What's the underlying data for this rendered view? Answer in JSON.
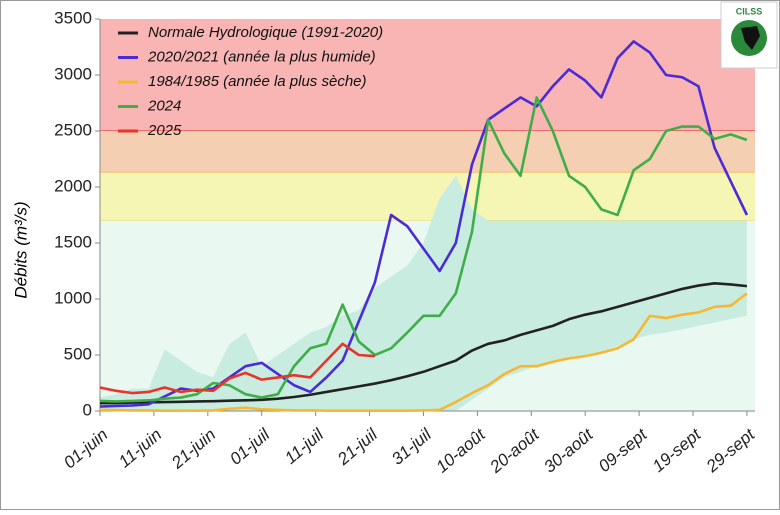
{
  "logo_text": "CILSS",
  "chart_data": {
    "type": "line",
    "y_label": "Débits  (m³/s)",
    "x": [
      0,
      3,
      6,
      9,
      12,
      15,
      18,
      21,
      24,
      27,
      30,
      33,
      36,
      39,
      42,
      45,
      48,
      51,
      54,
      57,
      60,
      63,
      66,
      69,
      72,
      75,
      78,
      81,
      84,
      87,
      90,
      93,
      96,
      99,
      102,
      105,
      108,
      111,
      114,
      117,
      120
    ],
    "xlim": [
      0,
      121.5
    ],
    "xticks": [
      {
        "value": 0,
        "label": "01-juin"
      },
      {
        "value": 10,
        "label": "11-juin"
      },
      {
        "value": 20,
        "label": "21-juin"
      },
      {
        "value": 30,
        "label": "01-juil"
      },
      {
        "value": 40,
        "label": "11-juil"
      },
      {
        "value": 50,
        "label": "21-juil"
      },
      {
        "value": 60,
        "label": "31-juil"
      },
      {
        "value": 70,
        "label": "10-août"
      },
      {
        "value": 80,
        "label": "20-août"
      },
      {
        "value": 90,
        "label": "30-août"
      },
      {
        "value": 100,
        "label": "09-sept"
      },
      {
        "value": 110,
        "label": "19-sept"
      },
      {
        "value": 120,
        "label": "29-sept"
      }
    ],
    "ylim": [
      0,
      3500
    ],
    "yticks": [
      0,
      500,
      1000,
      1500,
      2000,
      2500,
      3000,
      3500
    ],
    "legend": "top-left",
    "zones": [
      {
        "from": 2500,
        "to": 3500,
        "color": "#f9b4b4",
        "edge": "#e8403a"
      },
      {
        "from": 2130,
        "to": 2500,
        "color": "#f4cfb2",
        "edge": "#f0a040"
      },
      {
        "from": 1700,
        "to": 2130,
        "color": "#f6f6b4",
        "edge": "#f0d860"
      },
      {
        "from": 0,
        "to": 1700,
        "color": "#e9f8f1",
        "edge": "#e9f8f1"
      }
    ],
    "band": {
      "color": "#c9ece1",
      "lower": [
        0,
        0,
        0,
        0,
        0,
        0,
        0,
        0,
        0,
        0,
        0,
        0,
        0,
        0,
        0,
        0,
        0,
        0,
        0,
        0,
        0,
        0,
        0,
        100,
        200,
        300,
        350,
        400,
        430,
        460,
        500,
        530,
        580,
        640,
        680,
        700,
        730,
        760,
        790,
        820,
        850
      ],
      "upper": [
        120,
        150,
        200,
        200,
        550,
        450,
        350,
        300,
        600,
        700,
        400,
        500,
        600,
        700,
        750,
        850,
        900,
        1100,
        1200,
        1300,
        1500,
        1900,
        2100,
        1800,
        1700,
        1700,
        1700,
        1700,
        1700,
        1700,
        1700,
        1700,
        1700,
        1700,
        1700,
        1700,
        1700,
        1700,
        1700,
        1700,
        1700
      ]
    },
    "series": [
      {
        "name": "Normale Hydrologique (1991-2020)",
        "color": "#222222",
        "values": [
          70,
          72,
          75,
          78,
          80,
          82,
          85,
          88,
          92,
          95,
          100,
          110,
          125,
          145,
          170,
          195,
          220,
          245,
          275,
          310,
          350,
          400,
          450,
          540,
          600,
          630,
          680,
          720,
          760,
          820,
          860,
          890,
          930,
          970,
          1010,
          1050,
          1090,
          1120,
          1140,
          1130,
          1115
        ]
      },
      {
        "name": "2020/2021 (année la plus humide)",
        "color": "#4a2bd6",
        "values": [
          40,
          45,
          50,
          60,
          130,
          200,
          180,
          200,
          300,
          400,
          430,
          330,
          230,
          170,
          300,
          450,
          800,
          1150,
          1750,
          1650,
          1450,
          1250,
          1500,
          2200,
          2600,
          2700,
          2800,
          2720,
          2900,
          3050,
          2950,
          2800,
          3150,
          3300,
          3200,
          3000,
          2980,
          2900,
          2350,
          2050,
          1750
        ]
      },
      {
        "name": "1984/1985 (année la plus sèche)",
        "color": "#f5b830",
        "values": [
          10,
          8,
          5,
          5,
          3,
          3,
          3,
          5,
          20,
          30,
          15,
          10,
          5,
          5,
          3,
          3,
          3,
          3,
          3,
          3,
          5,
          10,
          80,
          160,
          230,
          330,
          400,
          400,
          440,
          470,
          490,
          520,
          560,
          640,
          850,
          830,
          860,
          880,
          930,
          940,
          1050
        ]
      },
      {
        "name": "2024",
        "color": "#3fae49",
        "values": [
          90,
          85,
          90,
          95,
          110,
          120,
          150,
          250,
          230,
          150,
          120,
          150,
          400,
          560,
          600,
          950,
          620,
          500,
          560,
          700,
          850,
          850,
          1050,
          1600,
          2600,
          2300,
          2100,
          2800,
          2500,
          2100,
          2000,
          1800,
          1750,
          2150,
          2250,
          2500,
          2540,
          2540,
          2430,
          2470,
          2420
        ]
      },
      {
        "name": "2025",
        "color": "#e8352c",
        "values": [
          210,
          180,
          160,
          170,
          210,
          170,
          190,
          180,
          290,
          340,
          280,
          300,
          320,
          300,
          450,
          600,
          500,
          490,
          null,
          null,
          null,
          null,
          null,
          null,
          null,
          null,
          null,
          null,
          null,
          null,
          null,
          null,
          null,
          null,
          null,
          null,
          null,
          null,
          null,
          null,
          null
        ]
      }
    ]
  }
}
